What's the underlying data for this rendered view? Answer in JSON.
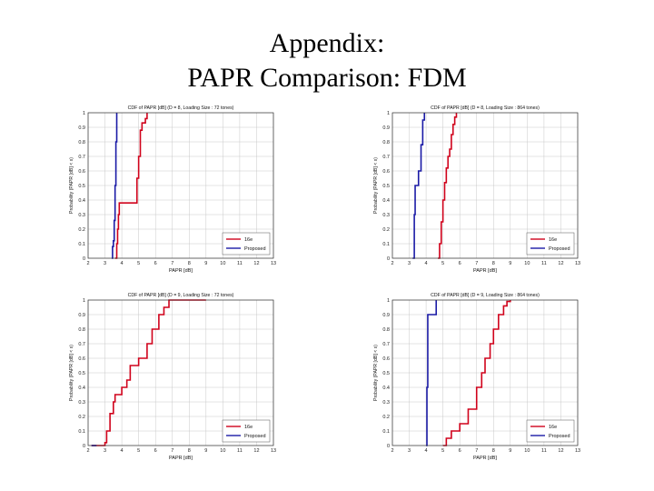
{
  "slide": {
    "title_line1": "Appendix:",
    "title_line2": "PAPR Comparison: FDM"
  },
  "chart_data": [
    {
      "type": "line",
      "title": "CDF of PAPR [dB] (D = 8, Loading Size : 72 tones)",
      "xlabel": "PAPR [dB]",
      "ylabel": "Probability (PAPR [dB] < x)",
      "xlim": [
        2,
        13
      ],
      "ylim": [
        0,
        1
      ],
      "xticks": [
        2,
        3,
        4,
        5,
        6,
        7,
        8,
        9,
        10,
        11,
        12,
        13
      ],
      "yticks": [
        0,
        0.1,
        0.2,
        0.3,
        0.4,
        0.5,
        0.6,
        0.7,
        0.8,
        0.9,
        1
      ],
      "grid": true,
      "legend_position": "bottom-right",
      "series": [
        {
          "name": "16e",
          "color": "#d0021b",
          "x": [
            3.6,
            3.7,
            3.75,
            3.8,
            3.85,
            4.8,
            4.9,
            5.0,
            5.1,
            5.2,
            5.4,
            5.5
          ],
          "y": [
            0.0,
            0.1,
            0.2,
            0.3,
            0.38,
            0.38,
            0.55,
            0.7,
            0.88,
            0.93,
            0.96,
            1.0
          ]
        },
        {
          "name": "Proposed",
          "color": "#1a1aa6",
          "x": [
            3.4,
            3.45,
            3.5,
            3.55,
            3.6,
            3.65,
            3.7
          ],
          "y": [
            0.0,
            0.08,
            0.12,
            0.26,
            0.5,
            0.8,
            1.0
          ]
        }
      ]
    },
    {
      "type": "line",
      "title": "CDF of PAPR [dB] (D = 8, Loading Size : 864 tones)",
      "xlabel": "PAPR [dB]",
      "ylabel": "Probability (PAPR [dB] < x)",
      "xlim": [
        2,
        13
      ],
      "ylim": [
        0,
        1
      ],
      "xticks": [
        2,
        3,
        4,
        5,
        6,
        7,
        8,
        9,
        10,
        11,
        12,
        13
      ],
      "yticks": [
        0,
        0.1,
        0.2,
        0.3,
        0.4,
        0.5,
        0.6,
        0.7,
        0.8,
        0.9,
        1
      ],
      "grid": true,
      "legend_position": "bottom-right",
      "series": [
        {
          "name": "16e",
          "color": "#d0021b",
          "x": [
            4.7,
            4.8,
            4.9,
            5.0,
            5.1,
            5.2,
            5.3,
            5.4,
            5.5,
            5.6,
            5.7,
            5.8
          ],
          "y": [
            0.0,
            0.1,
            0.25,
            0.4,
            0.52,
            0.62,
            0.7,
            0.75,
            0.85,
            0.92,
            0.97,
            1.0
          ]
        },
        {
          "name": "Proposed",
          "color": "#1a1aa6",
          "x": [
            3.2,
            3.3,
            3.35,
            3.5,
            3.55,
            3.7,
            3.8,
            3.9
          ],
          "y": [
            0.0,
            0.3,
            0.5,
            0.5,
            0.6,
            0.78,
            0.95,
            1.0
          ]
        }
      ]
    },
    {
      "type": "line",
      "title": "CDF of PAPR [dB] (D = 9, Loading Size : 72 tones)",
      "xlabel": "PAPR [dB]",
      "ylabel": "Probability (PAPR [dB] < x)",
      "xlim": [
        2,
        13
      ],
      "ylim": [
        0,
        1
      ],
      "xticks": [
        2,
        3,
        4,
        5,
        6,
        7,
        8,
        9,
        10,
        11,
        12,
        13
      ],
      "yticks": [
        0,
        0.1,
        0.2,
        0.3,
        0.4,
        0.5,
        0.6,
        0.7,
        0.8,
        0.9,
        1
      ],
      "grid": true,
      "legend_position": "bottom-right",
      "series": [
        {
          "name": "16e",
          "color": "#d0021b",
          "x": [
            2.2,
            3.0,
            3.1,
            3.3,
            3.5,
            3.6,
            4.0,
            4.3,
            4.5,
            5.0,
            5.5,
            5.8,
            6.2,
            6.5,
            6.8,
            7.0,
            9.0
          ],
          "y": [
            0.0,
            0.02,
            0.1,
            0.22,
            0.3,
            0.35,
            0.4,
            0.45,
            0.55,
            0.6,
            0.7,
            0.8,
            0.9,
            0.95,
            1.0,
            1.0,
            1.0
          ]
        },
        {
          "name": "Proposed",
          "color": "#1a1aa6",
          "x": [
            2.2,
            2.5
          ],
          "y": [
            0.0,
            0.0
          ]
        }
      ]
    },
    {
      "type": "line",
      "title": "CDF of PAPR [dB] (D = 9, Loading Size : 864 tones)",
      "xlabel": "PAPR [dB]",
      "ylabel": "Probability (PAPR [dB] < x)",
      "xlim": [
        2,
        13
      ],
      "ylim": [
        0,
        1
      ],
      "xticks": [
        2,
        3,
        4,
        5,
        6,
        7,
        8,
        9,
        10,
        11,
        12,
        13
      ],
      "yticks": [
        0,
        0.1,
        0.2,
        0.3,
        0.4,
        0.5,
        0.6,
        0.7,
        0.8,
        0.9,
        1
      ],
      "grid": true,
      "legend_position": "bottom-right",
      "series": [
        {
          "name": "16e",
          "color": "#d0021b",
          "x": [
            5.0,
            5.2,
            5.5,
            6.0,
            6.5,
            7.0,
            7.3,
            7.5,
            7.8,
            8.0,
            8.3,
            8.6,
            8.8,
            9.0
          ],
          "y": [
            0.0,
            0.05,
            0.1,
            0.15,
            0.25,
            0.4,
            0.5,
            0.6,
            0.7,
            0.8,
            0.9,
            0.96,
            0.99,
            1.0
          ]
        },
        {
          "name": "Proposed",
          "color": "#1a1aa6",
          "x": [
            4.0,
            4.05,
            4.1,
            4.2,
            4.3,
            4.5,
            4.6
          ],
          "y": [
            0.0,
            0.4,
            0.9,
            0.9,
            0.9,
            0.9,
            1.0
          ]
        }
      ]
    }
  ]
}
